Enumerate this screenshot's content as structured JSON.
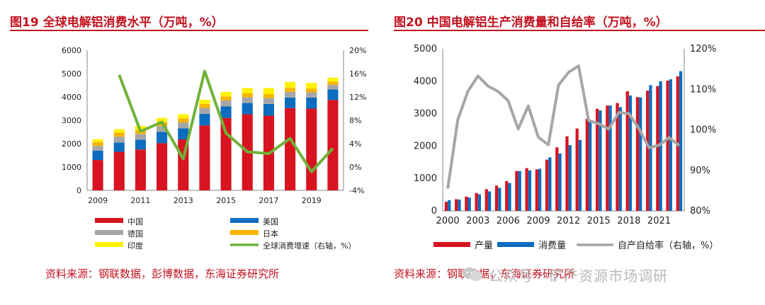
{
  "left": {
    "title": "图19  全球电解铝消费水平（万吨，%）",
    "source": "资料来源：钢联数据，彭博数据，东海证券研究所",
    "legend": [
      {
        "label": "中国",
        "kind": "bar",
        "color": "#d7141f"
      },
      {
        "label": "美国",
        "kind": "bar",
        "color": "#0b6cc0"
      },
      {
        "label": "德国",
        "kind": "bar",
        "color": "#a6a6a6"
      },
      {
        "label": "日本",
        "kind": "bar",
        "color": "#f7b500"
      },
      {
        "label": "印度",
        "kind": "bar",
        "color": "#fff200"
      },
      {
        "label": "全球消费增速（右轴，%）",
        "kind": "line",
        "color": "#6fb23a"
      }
    ]
  },
  "right": {
    "title": "图20  中国电解铝生产消费量和自给率（万吨，%）",
    "source": "资料来源：钢联数据，东海证券研究所",
    "legend": [
      {
        "label": "产量",
        "kind": "bar",
        "color": "#d7141f"
      },
      {
        "label": "消费量",
        "kind": "bar",
        "color": "#0b6cc0"
      },
      {
        "label": "自产自给率（右轴，%）",
        "kind": "line",
        "color": "#a6a6a6"
      }
    ]
  },
  "watermark": "公众号 · 矿产资源市场调研",
  "chart_data": [
    {
      "type": "bar",
      "stacked": true,
      "title": "图19  全球电解铝消费水平（万吨，%）",
      "categories": [
        "2009",
        "2010",
        "2011",
        "2012",
        "2013",
        "2014",
        "2015",
        "2016",
        "2017",
        "2018",
        "2019",
        "2020"
      ],
      "xtick_labels": [
        "2009",
        "2011",
        "2013",
        "2015",
        "2017",
        "2019"
      ],
      "ylim": [
        0,
        6000
      ],
      "yticks": [
        "0",
        "1000",
        "2000",
        "3000",
        "4000",
        "5000",
        "6000"
      ],
      "y2lim": [
        -4,
        20
      ],
      "y2ticks": [
        "-4%",
        "0%",
        "4%",
        "8%",
        "12%",
        "16%",
        "20%"
      ],
      "series": [
        {
          "name": "中国",
          "axis": "left",
          "color": "#d7141f",
          "values": [
            1300,
            1650,
            1750,
            2020,
            2180,
            2780,
            3100,
            3260,
            3200,
            3520,
            3500,
            3870
          ]
        },
        {
          "name": "美国",
          "axis": "left",
          "color": "#0b6cc0",
          "values": [
            400,
            400,
            420,
            480,
            480,
            500,
            500,
            480,
            500,
            450,
            470,
            450
          ]
        },
        {
          "name": "德国",
          "axis": "left",
          "color": "#a6a6a6",
          "values": [
            200,
            250,
            250,
            250,
            250,
            250,
            250,
            250,
            250,
            250,
            230,
            200
          ]
        },
        {
          "name": "日本",
          "axis": "left",
          "color": "#f7b500",
          "values": [
            170,
            170,
            170,
            170,
            170,
            170,
            170,
            170,
            170,
            170,
            160,
            140
          ]
        },
        {
          "name": "印度",
          "axis": "left",
          "color": "#fff200",
          "values": [
            120,
            150,
            170,
            180,
            180,
            180,
            200,
            220,
            260,
            250,
            240,
            170
          ]
        },
        {
          "name": "全球消费增速（右轴，%）",
          "axis": "right",
          "kind": "line",
          "color": "#6fb23a",
          "values": [
            null,
            15.8,
            6.1,
            7.7,
            1.4,
            16.4,
            5.8,
            2.6,
            2.3,
            4.9,
            -0.8,
            3.2
          ]
        }
      ]
    },
    {
      "type": "bar",
      "title": "图20  中国电解铝生产消费量和自给率（万吨，%）",
      "categories": [
        "2000",
        "2001",
        "2002",
        "2003",
        "2004",
        "2005",
        "2006",
        "2007",
        "2008",
        "2009",
        "2010",
        "2011",
        "2012",
        "2013",
        "2014",
        "2015",
        "2016",
        "2017",
        "2018",
        "2019",
        "2020",
        "2021",
        "2022",
        "2023"
      ],
      "xtick_labels": [
        "2000",
        "2003",
        "2006",
        "2009",
        "2012",
        "2015",
        "2018",
        "2021"
      ],
      "ylim": [
        0,
        5000
      ],
      "yticks": [
        "0",
        "1000",
        "2000",
        "3000",
        "4000",
        "5000"
      ],
      "y2lim": [
        80,
        120
      ],
      "y2ticks": [
        "80%",
        "90%",
        "100%",
        "110%",
        "120%"
      ],
      "series": [
        {
          "name": "产量",
          "axis": "left",
          "color": "#d7141f",
          "values": [
            280,
            360,
            440,
            550,
            670,
            780,
            920,
            1230,
            1320,
            1280,
            1580,
            1960,
            2300,
            2540,
            2840,
            3150,
            3250,
            3330,
            3690,
            3510,
            3710,
            3850,
            4020,
            4150
          ]
        },
        {
          "name": "消费量",
          "axis": "left",
          "color": "#0b6cc0",
          "values": [
            330,
            350,
            410,
            510,
            600,
            710,
            860,
            1230,
            1250,
            1300,
            1650,
            1770,
            2030,
            2190,
            2770,
            3100,
            3250,
            3200,
            3560,
            3500,
            3880,
            4000,
            4060,
            4310
          ]
        },
        {
          "name": "自产自给率（右轴，%）",
          "axis": "right",
          "kind": "line",
          "color": "#a6a6a6",
          "values": [
            85.5,
            102.5,
            109.5,
            113.3,
            110.8,
            109.5,
            107.2,
            100.2,
            105.9,
            98.2,
            96.3,
            111.0,
            114.2,
            115.8,
            102.3,
            101.5,
            100.2,
            104.3,
            104.0,
            100.3,
            95.6,
            96.2,
            98.1,
            96.1
          ]
        }
      ]
    }
  ]
}
